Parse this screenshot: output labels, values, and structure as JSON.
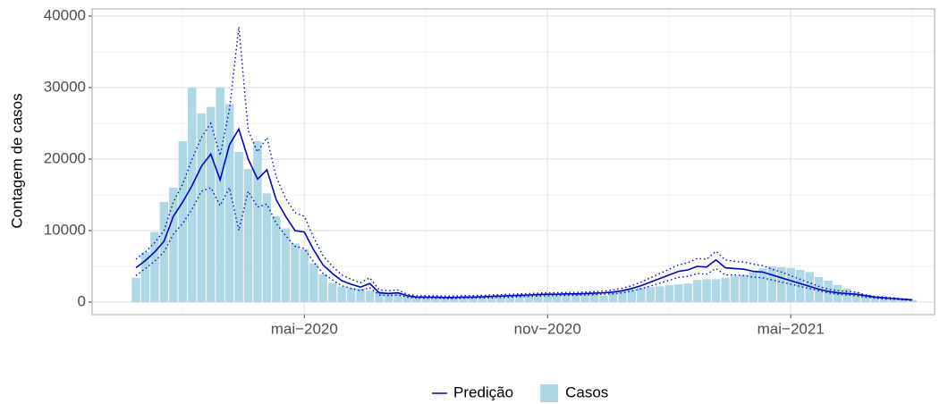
{
  "chart_data": {
    "type": "bar-line",
    "y_label": "Contagem de casos",
    "categories": [
      null,
      null,
      null,
      null,
      null,
      null,
      null,
      null,
      null,
      null,
      null,
      null,
      null,
      null,
      null,
      null,
      null,
      null,
      "mai−2020",
      null,
      null,
      null,
      null,
      null,
      null,
      null,
      null,
      null,
      null,
      null,
      null,
      null,
      null,
      null,
      null,
      null,
      null,
      null,
      null,
      null,
      null,
      null,
      null,
      null,
      "nov−2020",
      null,
      null,
      null,
      null,
      null,
      null,
      null,
      null,
      null,
      null,
      null,
      null,
      null,
      null,
      null,
      null,
      null,
      null,
      null,
      null,
      null,
      null,
      null,
      null,
      null,
      "mai−2021",
      null,
      null,
      null,
      null,
      null,
      null,
      null,
      null,
      null,
      null,
      null,
      null,
      null
    ],
    "series": [
      {
        "name": "Casos",
        "color": "#add8e6",
        "kind": "bar",
        "values": [
          3400,
          7000,
          9800,
          14000,
          16000,
          22500,
          30000,
          26400,
          27300,
          30000,
          27700,
          21000,
          18600,
          22500,
          15200,
          12000,
          10300,
          8200,
          7400,
          5400,
          3900,
          2700,
          2200,
          2000,
          1900,
          1600,
          1500,
          1400,
          1200,
          900,
          800,
          700,
          700,
          650,
          650,
          700,
          700,
          750,
          800,
          850,
          900,
          900,
          1000,
          1000,
          1100,
          1100,
          1100,
          1200,
          1200,
          1200,
          900,
          1400,
          1600,
          1800,
          2000,
          2100,
          2200,
          2400,
          2500,
          2600,
          3100,
          3200,
          3200,
          3400,
          3700,
          3800,
          4200,
          4700,
          5000,
          4900,
          4800,
          4500,
          4200,
          3500,
          3000,
          2400,
          1900,
          1400,
          1000,
          800,
          600,
          500,
          400,
          300
        ]
      },
      {
        "name": "Predição",
        "color": "#0000cd",
        "kind": "line",
        "values": [
          4800,
          5800,
          7000,
          8500,
          12000,
          14000,
          16300,
          19000,
          20700,
          17100,
          22000,
          24200,
          20000,
          17200,
          18500,
          14300,
          12000,
          10000,
          9800,
          7300,
          5200,
          4000,
          3000,
          2500,
          2100,
          2600,
          1300,
          1200,
          1300,
          900,
          700,
          700,
          700,
          650,
          650,
          700,
          700,
          750,
          800,
          850,
          900,
          950,
          1000,
          1050,
          1100,
          1100,
          1150,
          1150,
          1200,
          1250,
          1300,
          1400,
          1600,
          1900,
          2300,
          2800,
          3300,
          3800,
          4300,
          4500,
          5000,
          4900,
          5900,
          4800,
          4700,
          4600,
          4300,
          4200,
          3800,
          3400,
          3000,
          2600,
          2200,
          1800,
          1500,
          1300,
          1200,
          1100,
          900,
          700,
          600,
          500,
          400,
          300
        ]
      }
    ],
    "bounds": [
      {
        "color": "#0000cd",
        "dash": "dotted",
        "values": [
          6000,
          7000,
          8300,
          10000,
          14000,
          16500,
          20000,
          23000,
          25000,
          20500,
          27000,
          38500,
          24000,
          21000,
          23000,
          17500,
          14500,
          12500,
          12000,
          9000,
          6500,
          5000,
          3800,
          3200,
          2700,
          3400,
          1700,
          1600,
          1700,
          1100,
          900,
          900,
          900,
          850,
          850,
          900,
          900,
          950,
          1000,
          1050,
          1100,
          1150,
          1200,
          1250,
          1300,
          1300,
          1350,
          1350,
          1400,
          1450,
          1550,
          1700,
          1950,
          2300,
          2800,
          3400,
          4000,
          4600,
          5200,
          5500,
          6100,
          6000,
          7100,
          5900,
          5700,
          5600,
          5300,
          5100,
          4600,
          4200,
          3700,
          3200,
          2700,
          2200,
          1800,
          1600,
          1500,
          1400,
          1000,
          800,
          700,
          600,
          450,
          350
        ]
      },
      {
        "color": "#0000cd",
        "dash": "dotted",
        "values": [
          3700,
          4700,
          5700,
          7000,
          9500,
          11000,
          13000,
          15500,
          16000,
          13500,
          16000,
          10000,
          15500,
          13300,
          13700,
          11000,
          9300,
          7800,
          7500,
          5600,
          4000,
          3100,
          2300,
          1900,
          1600,
          2000,
          1000,
          900,
          1000,
          700,
          550,
          550,
          550,
          500,
          500,
          550,
          550,
          600,
          600,
          650,
          700,
          750,
          800,
          850,
          900,
          900,
          950,
          950,
          1000,
          1050,
          1100,
          1150,
          1300,
          1550,
          1850,
          2250,
          2650,
          3050,
          3450,
          3600,
          4000,
          3900,
          4700,
          3800,
          3800,
          3700,
          3500,
          3400,
          3100,
          2800,
          2500,
          2200,
          1900,
          1600,
          1300,
          1100,
          1000,
          900,
          700,
          550,
          450,
          400,
          300,
          250
        ]
      }
    ],
    "ylim": [
      -1750,
      41000
    ],
    "yticks": [
      0,
      10000,
      20000,
      30000,
      40000
    ],
    "grid": true,
    "legend": "bottom"
  }
}
